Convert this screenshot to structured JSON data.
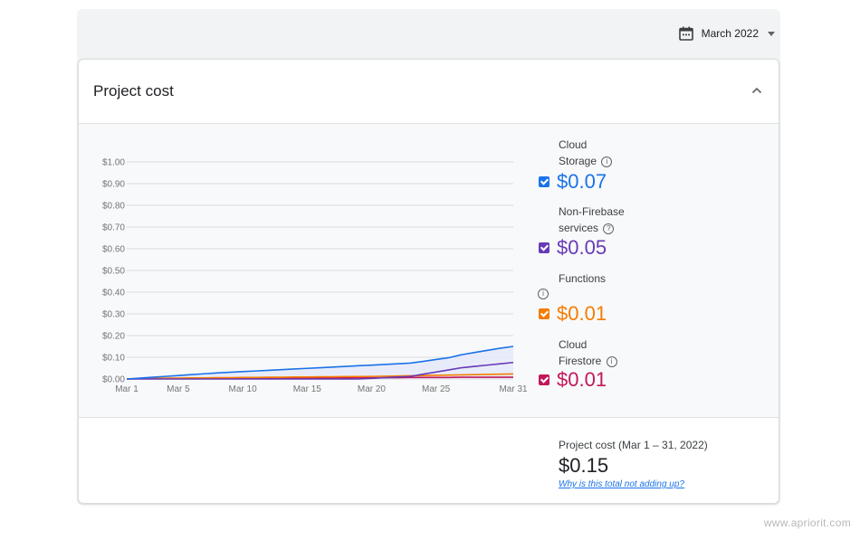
{
  "header": {
    "month": "March 2022"
  },
  "card": {
    "title": "Project cost"
  },
  "legend": [
    {
      "name_line1": "Cloud",
      "name_line2": "Storage",
      "info": "i",
      "value": "$0.07",
      "color": "#1a73e8",
      "checked": true
    },
    {
      "name_line1": "Non-Firebase",
      "name_line2": "services",
      "info": "?",
      "value": "$0.05",
      "color": "#673ab7",
      "checked": true
    },
    {
      "name_line1": "Functions",
      "name_line2": "",
      "info": "i",
      "value": "$0.01",
      "color": "#f57c00",
      "checked": true
    },
    {
      "name_line1": "Cloud",
      "name_line2": "Firestore",
      "info": "i",
      "value": "$0.01",
      "color": "#c2185b",
      "checked": true
    }
  ],
  "footer": {
    "label": "Project cost (Mar 1 – 31, 2022)",
    "total": "$0.15",
    "link": "Why is this total not adding up?"
  },
  "watermark": "www.apriorit.com",
  "chart_data": {
    "type": "area",
    "x": [
      1,
      2,
      3,
      4,
      5,
      6,
      7,
      8,
      9,
      10,
      11,
      12,
      13,
      14,
      15,
      16,
      17,
      18,
      19,
      20,
      21,
      22,
      23,
      24,
      25,
      26,
      27,
      28,
      29,
      30,
      31
    ],
    "x_tick_labels": [
      "Mar 1",
      "Mar 5",
      "Mar 10",
      "Mar 15",
      "Mar 20",
      "Mar 25",
      "Mar 31"
    ],
    "x_ticks": [
      1,
      5,
      10,
      15,
      20,
      25,
      31
    ],
    "y_ticks": [
      "$0.00",
      "$0.10",
      "$0.20",
      "$0.30",
      "$0.40",
      "$0.50",
      "$0.60",
      "$0.70",
      "$0.80",
      "$0.90",
      "$1.00"
    ],
    "ylim": [
      0,
      1.0
    ],
    "grid": true,
    "series": [
      {
        "name": "Cloud Storage",
        "color": "#1a73e8",
        "values": [
          0,
          0.004,
          0.008,
          0.012,
          0.016,
          0.02,
          0.024,
          0.028,
          0.031,
          0.034,
          0.037,
          0.04,
          0.043,
          0.046,
          0.049,
          0.052,
          0.055,
          0.058,
          0.061,
          0.064,
          0.067,
          0.07,
          0.073,
          0.081,
          0.09,
          0.098,
          0.112,
          0.122,
          0.132,
          0.142,
          0.15
        ]
      },
      {
        "name": "Non-Firebase services",
        "color": "#673ab7",
        "values": [
          0,
          0,
          0,
          0,
          0,
          0,
          0,
          0,
          0,
          0,
          0,
          0,
          0,
          0,
          0,
          0,
          0,
          0,
          0,
          0.003,
          0.006,
          0.009,
          0.012,
          0.022,
          0.032,
          0.042,
          0.052,
          0.058,
          0.064,
          0.07,
          0.076
        ]
      },
      {
        "name": "Functions",
        "color": "#f57c00",
        "values": [
          0,
          0.002,
          0.003,
          0.004,
          0.004,
          0.005,
          0.005,
          0.006,
          0.006,
          0.007,
          0.007,
          0.008,
          0.008,
          0.009,
          0.009,
          0.01,
          0.01,
          0.011,
          0.011,
          0.012,
          0.013,
          0.014,
          0.015,
          0.016,
          0.017,
          0.018,
          0.019,
          0.02,
          0.021,
          0.022,
          0.023
        ]
      },
      {
        "name": "Cloud Firestore",
        "color": "#c2185b",
        "values": [
          0,
          0.001,
          0.001,
          0.002,
          0.002,
          0.002,
          0.003,
          0.003,
          0.003,
          0.003,
          0.004,
          0.004,
          0.004,
          0.004,
          0.005,
          0.005,
          0.005,
          0.005,
          0.006,
          0.006,
          0.006,
          0.006,
          0.007,
          0.007,
          0.007,
          0.007,
          0.008,
          0.008,
          0.008,
          0.008,
          0.008
        ]
      }
    ]
  }
}
